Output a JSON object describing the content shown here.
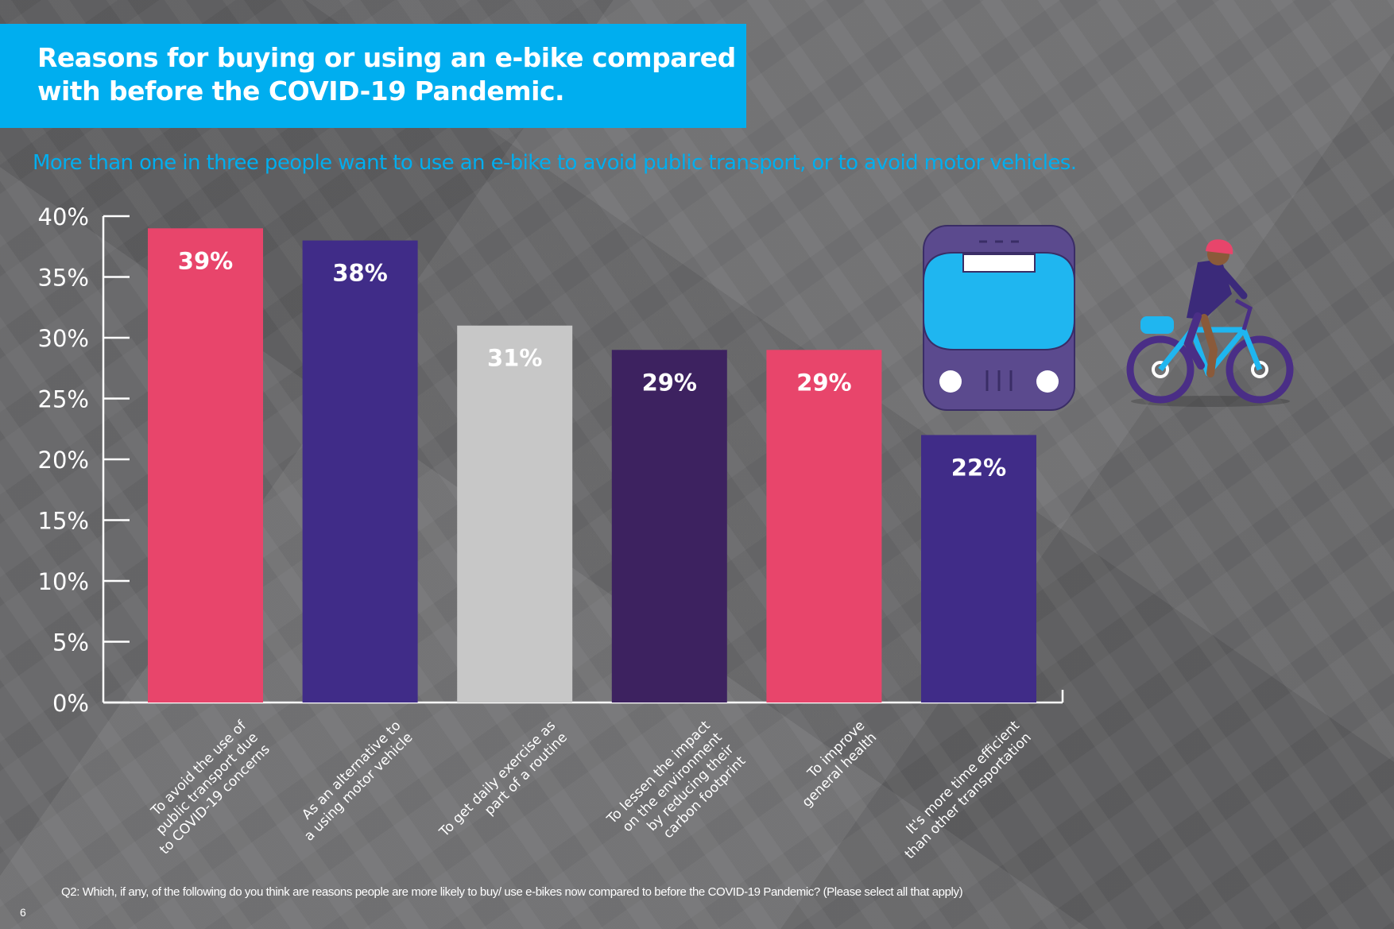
{
  "header": {
    "title": "Reasons for buying or using an e-bike compared with before the COVID-19 Pandemic.",
    "subtitle": "More than one in three people want to use an e-bike to avoid public transport, or to avoid motor vehicles."
  },
  "footer": {
    "question": "Q2: Which, if any, of the following do you think are reasons people are more likely to buy/ use e-bikes now compared to before the COVID-19 Pandemic? (Please select all that apply)",
    "page_number": "6"
  },
  "illustrations": {
    "bus": "bus-icon",
    "cyclist": "cyclist-on-ebike-icon"
  },
  "colors": {
    "title_bg": "#00aeef",
    "subtitle": "#00aeef",
    "bars": [
      "#e8456b",
      "#402c88",
      "#c7c7c7",
      "#3d2260",
      "#e8456b",
      "#402c88"
    ]
  },
  "chart_data": {
    "type": "bar",
    "categories": [
      "To avoid the use of public transport due to COVID-19 concerns",
      "As an alternative to a using motor vehicle",
      "To get daily exercise as part of a routine",
      "To lessen the impact on the environment by reducing their carbon footprint",
      "To improve general health",
      "It's more time efficient than other transportation"
    ],
    "category_lines": [
      [
        "To avoid the use of",
        "public transport due",
        "to COVID-19 concerns"
      ],
      [
        "As an alternative to",
        "a using motor vehicle"
      ],
      [
        "To get daily exercise as",
        "part of a routine"
      ],
      [
        "To lessen the impact",
        "on the environment",
        "by reducing their",
        "carbon footprint"
      ],
      [
        "To improve",
        "general health"
      ],
      [
        "It's more time efficient",
        "than other transportation"
      ]
    ],
    "values": [
      39,
      38,
      31,
      29,
      29,
      22
    ],
    "data_labels": [
      "39%",
      "38%",
      "31%",
      "29%",
      "29%",
      "22%"
    ],
    "yticks": [
      0,
      5,
      10,
      15,
      20,
      25,
      30,
      35,
      40
    ],
    "ytick_labels": [
      "0%",
      "5%",
      "10%",
      "15%",
      "20%",
      "25%",
      "30%",
      "35%",
      "40%"
    ],
    "ylim": [
      0,
      40
    ],
    "grid": false,
    "legend": "none"
  }
}
